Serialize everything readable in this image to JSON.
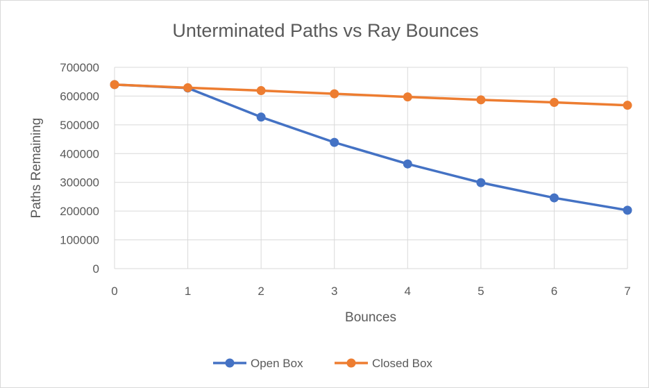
{
  "chart_data": {
    "type": "line",
    "title": "Unterminated Paths vs Ray Bounces",
    "xlabel": "Bounces",
    "ylabel": "Paths Remaining",
    "x": [
      0,
      1,
      2,
      3,
      4,
      5,
      6,
      7
    ],
    "x_tick_labels": [
      "0",
      "1",
      "2",
      "3",
      "4",
      "5",
      "6",
      "7"
    ],
    "ylim": [
      0,
      700000
    ],
    "y_tick_labels": [
      "0",
      "100000",
      "200000",
      "300000",
      "400000",
      "500000",
      "600000",
      "700000"
    ],
    "grid": true,
    "legend_position": "bottom",
    "series": [
      {
        "name": "Open Box",
        "color": "#4472C4",
        "values": [
          640000,
          628000,
          527000,
          439000,
          364000,
          299000,
          246000,
          203000
        ]
      },
      {
        "name": "Closed Box",
        "color": "#ED7D31",
        "values": [
          640000,
          629000,
          619000,
          608000,
          597000,
          587000,
          578000,
          568000
        ]
      }
    ]
  }
}
